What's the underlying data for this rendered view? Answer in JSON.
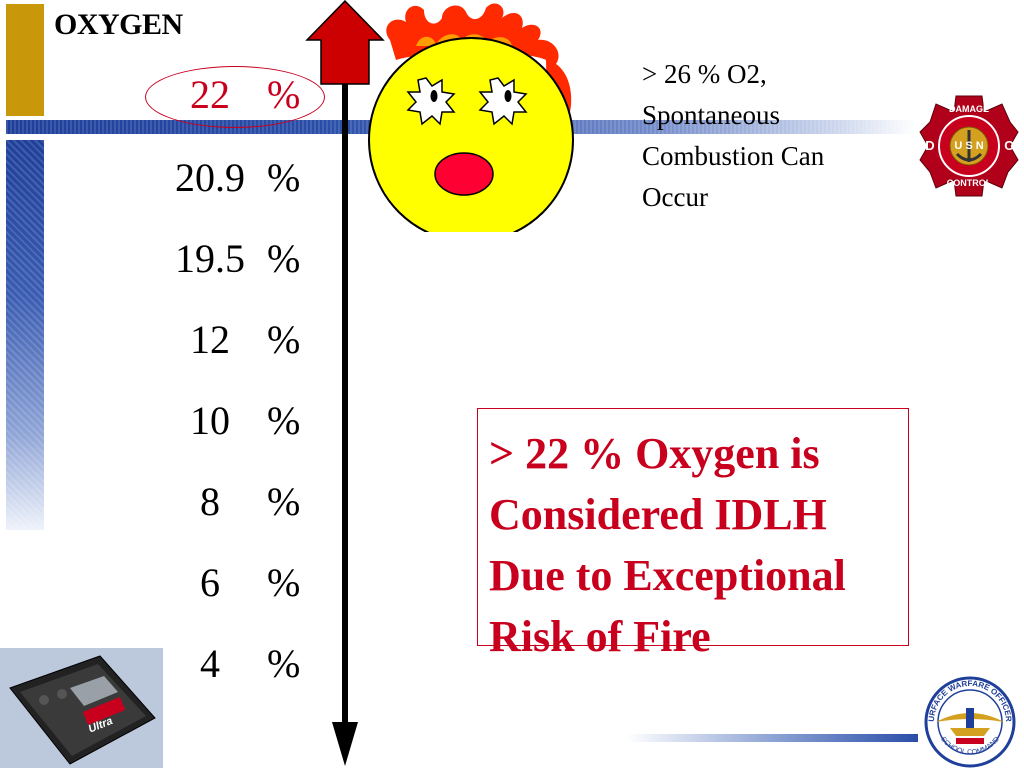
{
  "slide": {
    "title": "OXYGEN",
    "scale": [
      {
        "value": "22",
        "unit": "%"
      },
      {
        "value": "20.9",
        "unit": "%"
      },
      {
        "value": "19.5",
        "unit": "%"
      },
      {
        "value": "12",
        "unit": "%"
      },
      {
        "value": "10",
        "unit": "%"
      },
      {
        "value": "8",
        "unit": "%"
      },
      {
        "value": "6",
        "unit": "%"
      },
      {
        "value": "4",
        "unit": "%"
      }
    ],
    "note_lines": [
      "> 26 % O2,",
      "Spontaneous",
      "Combustion Can",
      "Occur"
    ],
    "callout_lines": [
      "> 22 % Oxygen is",
      "Considered IDLH",
      "Due to Exceptional",
      "Risk of Fire"
    ]
  },
  "logos": {
    "damage_control": {
      "top": "DAMAGE",
      "left": "D",
      "center": "U S N",
      "right": "C",
      "bottom": "CONTROL"
    },
    "swos": {
      "top": "SURFACE WARFARE OFFICERS",
      "bottom": "SCHOOL COMMAND"
    },
    "meter": {
      "brand": "Ultra"
    }
  },
  "colors": {
    "accent_red": "#c8001e",
    "gold": "#c9980a",
    "navy": "#1f3f9a",
    "face_yellow": "#ffff00",
    "flame_red": "#ff2a00"
  }
}
